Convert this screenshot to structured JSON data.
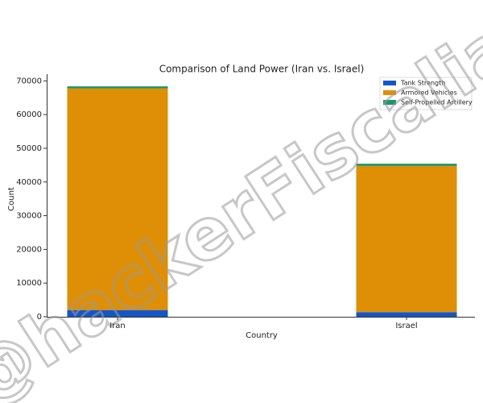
{
  "chart_data": {
    "type": "stacked_bar",
    "title": "Comparison of Land Power (Iran vs. Israel)",
    "x_label": "Country",
    "y_label": "Count",
    "categories": [
      "Iran",
      "Israel"
    ],
    "series": [
      {
        "name": "Tank Strength",
        "color": "#1356c8",
        "values": [
          1996,
          1370
        ]
      },
      {
        "name": "Armored Vehicles",
        "color": "#de8f05",
        "values": [
          65800,
          43400
        ]
      },
      {
        "name": "Self-Propelled Artillery",
        "color": "#16956f",
        "values": [
          580,
          650
        ]
      }
    ],
    "ylim": [
      0,
      72000
    ],
    "yticks": [
      0,
      10000,
      20000,
      30000,
      40000,
      50000,
      60000,
      70000
    ],
    "legend": "upper right",
    "watermark": "@hackerFiscalia"
  }
}
